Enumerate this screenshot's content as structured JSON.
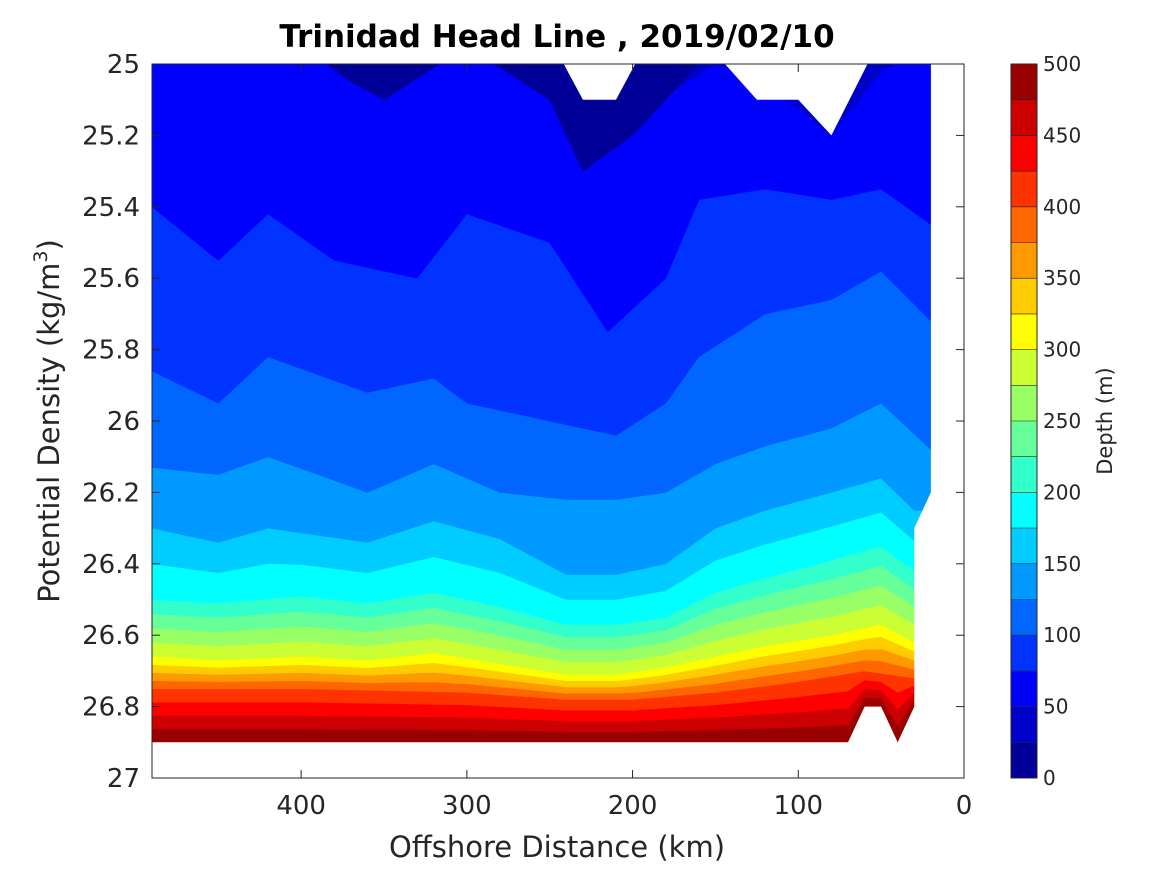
{
  "chart_data": {
    "type": "contourf",
    "title": "Trinidad Head Line , 2019/02/10",
    "xlabel": "Offshore Distance (km)",
    "ylabel": "Potential Density (kg/m",
    "ylabel_sup": "3",
    "ylabel_close": ")",
    "xlim": [
      490,
      0
    ],
    "x_reversed": true,
    "x_ticks": [
      400,
      300,
      200,
      100,
      0
    ],
    "ylim": [
      25,
      27
    ],
    "y_reversed": true,
    "y_ticks": [
      "25",
      "25.2",
      "25.4",
      "25.6",
      "25.8",
      "26",
      "26.2",
      "26.4",
      "26.6",
      "26.8",
      "27"
    ],
    "colorbar": {
      "label": "Depth (m)",
      "min": 0,
      "max": 500,
      "step": 25,
      "ticks": [
        "0",
        "50",
        "100",
        "150",
        "200",
        "250",
        "300",
        "350",
        "400",
        "450",
        "500"
      ]
    },
    "colormap": "jet",
    "contour_step": 25,
    "depth_isopycnals": [
      {
        "depth": 25,
        "x": [
          490,
          400,
          370,
          350,
          300,
          250,
          230,
          200,
          150,
          100,
          80,
          20
        ],
        "y": [
          24.95,
          24.95,
          25.05,
          25.1,
          24.95,
          25.1,
          25.3,
          25.2,
          24.95,
          24.95,
          25.0,
          24.95
        ]
      },
      {
        "depth": 50,
        "x": [
          490,
          400,
          300,
          260,
          230,
          200,
          150,
          120,
          80,
          50,
          20
        ],
        "y": [
          24.95,
          24.95,
          24.95,
          25.0,
          25.28,
          25.15,
          25.0,
          25.05,
          25.2,
          25.02,
          24.95
        ]
      },
      {
        "depth": 75,
        "x": [
          490,
          450,
          420,
          380,
          330,
          300,
          250,
          215,
          180,
          160,
          120,
          80,
          50,
          20
        ],
        "y": [
          25.4,
          25.55,
          25.42,
          25.55,
          25.6,
          25.42,
          25.5,
          25.75,
          25.6,
          25.38,
          25.35,
          25.38,
          25.35,
          25.45
        ]
      },
      {
        "depth": 100,
        "x": [
          490,
          450,
          420,
          360,
          320,
          300,
          250,
          210,
          180,
          160,
          120,
          80,
          50,
          20
        ],
        "y": [
          25.86,
          25.95,
          25.82,
          25.92,
          25.88,
          25.95,
          26.0,
          26.04,
          25.95,
          25.82,
          25.7,
          25.66,
          25.58,
          25.72
        ]
      },
      {
        "depth": 125,
        "x": [
          490,
          450,
          420,
          360,
          320,
          280,
          240,
          210,
          180,
          150,
          120,
          80,
          50,
          20
        ],
        "y": [
          26.13,
          26.15,
          26.1,
          26.2,
          26.12,
          26.2,
          26.22,
          26.22,
          26.2,
          26.12,
          26.07,
          26.02,
          25.95,
          26.08
        ]
      },
      {
        "depth": 150,
        "x": [
          490,
          450,
          420,
          360,
          320,
          280,
          240,
          210,
          180,
          150,
          120,
          80,
          50,
          30
        ],
        "y": [
          26.3,
          26.34,
          26.3,
          26.34,
          26.28,
          26.33,
          26.43,
          26.43,
          26.4,
          26.3,
          26.25,
          26.2,
          26.16,
          26.25
        ]
      },
      {
        "depth": 200,
        "x": [
          490,
          450,
          400,
          360,
          320,
          280,
          240,
          210,
          180,
          150,
          120,
          80,
          50,
          30
        ],
        "y": [
          26.5,
          26.51,
          26.49,
          26.51,
          26.48,
          26.52,
          26.57,
          26.57,
          26.55,
          26.48,
          26.44,
          26.39,
          26.35,
          26.42
        ]
      },
      {
        "depth": 300,
        "x": [
          490,
          450,
          400,
          360,
          320,
          280,
          240,
          210,
          180,
          150,
          120,
          80,
          50,
          30
        ],
        "y": [
          26.66,
          26.67,
          26.66,
          26.67,
          26.65,
          26.68,
          26.71,
          26.71,
          26.69,
          26.66,
          26.63,
          26.6,
          26.57,
          26.62
        ]
      },
      {
        "depth": 400,
        "x": [
          490,
          400,
          300,
          240,
          200,
          150,
          100,
          60,
          30
        ],
        "y": [
          26.75,
          26.75,
          26.76,
          26.78,
          26.78,
          26.76,
          26.73,
          26.7,
          26.72
        ]
      },
      {
        "depth": 500,
        "x": [
          490,
          300,
          200,
          100,
          70,
          60,
          50,
          40,
          30
        ],
        "y": [
          26.9,
          26.9,
          26.9,
          26.9,
          26.9,
          26.8,
          26.8,
          26.9,
          26.8
        ]
      }
    ]
  }
}
